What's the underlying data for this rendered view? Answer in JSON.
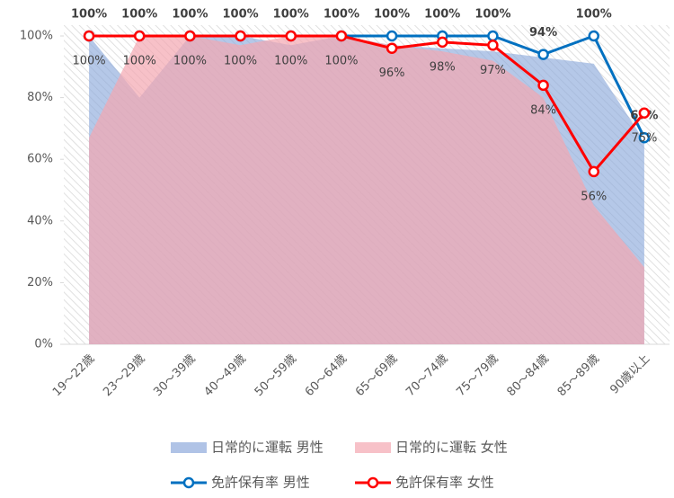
{
  "chart_data": {
    "type": "area_line",
    "categories": [
      "19～22歳",
      "23～29歳",
      "30～39歳",
      "40～49歳",
      "50～59歳",
      "60～64歳",
      "65～69歳",
      "70～74歳",
      "75～79歳",
      "80～84歳",
      "85～89歳",
      "90歳以上"
    ],
    "series": [
      {
        "name": "日常的に運転 男性",
        "kind": "area",
        "color": "#8eaadb",
        "values": [
          100,
          80,
          100,
          100,
          97,
          100,
          97,
          96,
          95,
          93,
          91,
          66
        ]
      },
      {
        "name": "日常的に運転 女性",
        "kind": "area",
        "color": "#f4a6b0",
        "values": [
          67,
          100,
          100,
          97,
          100,
          100,
          97,
          95,
          92,
          80,
          45,
          25
        ]
      },
      {
        "name": "免許保有率 男性",
        "kind": "line",
        "color": "#0070c0",
        "values": [
          100,
          100,
          100,
          100,
          100,
          100,
          100,
          100,
          100,
          94,
          100,
          67
        ],
        "value_labels": [
          "100%",
          "100%",
          "100%",
          "100%",
          "100%",
          "100%",
          "100%",
          "100%",
          "100%",
          "94%",
          "100%",
          "67%"
        ]
      },
      {
        "name": "免許保有率 女性",
        "kind": "line",
        "color": "#ff0000",
        "values": [
          100,
          100,
          100,
          100,
          100,
          100,
          96,
          98,
          97,
          84,
          56,
          75
        ],
        "value_labels": [
          "100%",
          "100%",
          "100%",
          "100%",
          "100%",
          "100%",
          "96%",
          "98%",
          "97%",
          "84%",
          "56%",
          "75%"
        ]
      }
    ],
    "ylim": [
      0,
      100
    ],
    "yticks": [
      {
        "value": 0,
        "label": "0%"
      },
      {
        "value": 20,
        "label": "20%"
      },
      {
        "value": 40,
        "label": "40%"
      },
      {
        "value": 60,
        "label": "60%"
      },
      {
        "value": 80,
        "label": "80%"
      },
      {
        "value": 100,
        "label": "100%"
      }
    ]
  }
}
